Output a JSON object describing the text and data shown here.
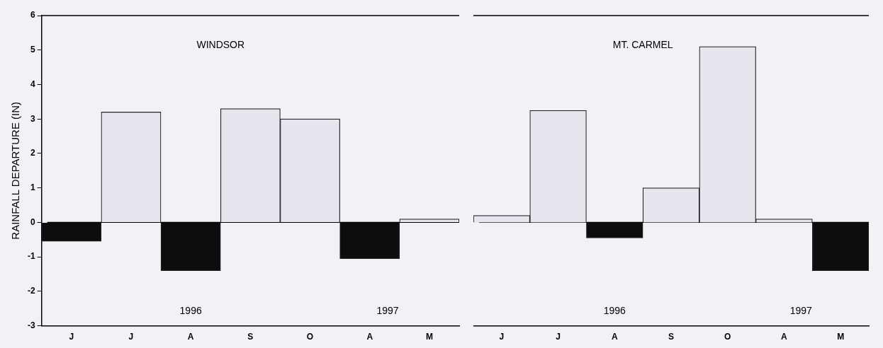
{
  "chart_data": [
    {
      "type": "bar",
      "title": "WINDSOR",
      "ylabel": "RAINFALL DEPARTURE (IN)",
      "categories": [
        "J",
        "J",
        "A",
        "S",
        "O",
        "A",
        "M"
      ],
      "values": [
        -0.55,
        3.2,
        -1.4,
        3.3,
        3.0,
        -1.05,
        0.1
      ],
      "colors": [
        "#0d0d0d",
        "#e6e6ee",
        "#0d0d0d",
        "#e6e6ee",
        "#e6e6ee",
        "#0d0d0d",
        "#e6e6ee"
      ],
      "ylim": [
        -3,
        6
      ],
      "yticks": [
        -3,
        -2,
        -1,
        0,
        1,
        2,
        3,
        4,
        5,
        6
      ],
      "grid": false,
      "legend": false,
      "ref_lines": [
        {
          "axis": "y",
          "value": 0
        }
      ],
      "annotations": [
        "1996",
        "1997"
      ]
    },
    {
      "type": "bar",
      "title": "MT. CARMEL",
      "categories": [
        "J",
        "J",
        "A",
        "S",
        "O",
        "A",
        "M"
      ],
      "values": [
        0.2,
        3.25,
        -0.45,
        1.0,
        5.1,
        0.1,
        -1.4
      ],
      "colors": [
        "#e6e6ee",
        "#e6e6ee",
        "#0d0d0d",
        "#e6e6ee",
        "#e6e6ee",
        "#e6e6ee",
        "#0d0d0d"
      ],
      "ylim": [
        -3,
        6
      ],
      "yticks": [
        -3,
        -2,
        -1,
        0,
        1,
        2,
        3,
        4,
        5,
        6
      ],
      "grid": false,
      "legend": false,
      "tick_labels": "x",
      "ref_lines": [
        {
          "axis": "y",
          "value": 0
        }
      ],
      "annotations": [
        "1996",
        "1997"
      ]
    }
  ]
}
